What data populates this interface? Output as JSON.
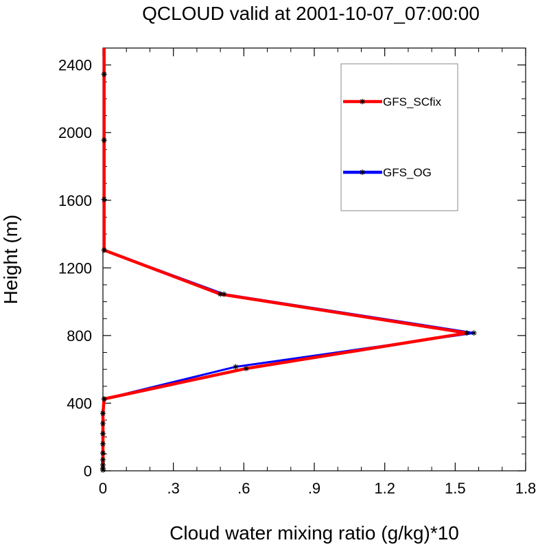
{
  "chart_data": {
    "type": "line",
    "title": "QCLOUD valid at 2001-10-07_07:00:00",
    "xlabel": "Cloud water mixing ratio (g/kg)*10",
    "ylabel": "Height (m)",
    "xlim": [
      0,
      1.8
    ],
    "ylim": [
      0,
      2500
    ],
    "xticks": [
      0,
      0.3,
      0.6,
      0.9,
      1.2,
      1.5,
      1.8
    ],
    "xtick_labels": [
      "0",
      ".3",
      ".6",
      ".9",
      "1.2",
      "1.5",
      "1.8"
    ],
    "yticks": [
      0,
      400,
      800,
      1200,
      1600,
      2000,
      2400
    ],
    "ytick_labels": [
      "0",
      "400",
      "800",
      "1200",
      "1600",
      "2000",
      "2400"
    ],
    "grid": false,
    "legend_position": "top-right",
    "series": [
      {
        "name": "GFS_OG",
        "color": "#0000ff",
        "marker": "asterisk",
        "x": [
          0,
          0,
          0,
          0,
          0,
          0,
          0,
          0,
          0,
          0.005,
          0.565,
          1.58,
          0.515,
          0.005,
          0.005,
          0.005,
          0.005,
          0.005
        ],
        "y": [
          5,
          15,
          35,
          65,
          105,
          160,
          220,
          280,
          340,
          425,
          615,
          815,
          1045,
          1305,
          1605,
          1955,
          2345,
          2500
        ]
      },
      {
        "name": "GFS_SCfix",
        "color": "#ff0000",
        "marker": "asterisk",
        "x": [
          0,
          0,
          0,
          0,
          0,
          0,
          0,
          0,
          0,
          0.005,
          0.61,
          1.55,
          0.5,
          0.005,
          0.005,
          0.005,
          0.005,
          0.005
        ],
        "y": [
          5,
          15,
          35,
          65,
          105,
          160,
          220,
          280,
          340,
          425,
          605,
          815,
          1045,
          1305,
          1605,
          1955,
          2345,
          2500
        ]
      }
    ]
  }
}
